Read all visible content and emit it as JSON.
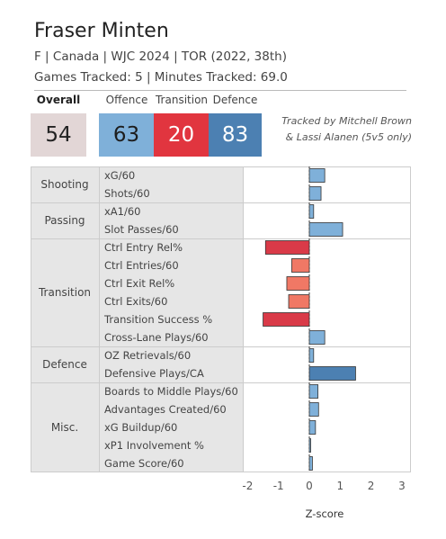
{
  "player": {
    "name": "Fraser Minten",
    "info": "F | Canada | WJC 2024 | TOR (2022, 38th)",
    "tracking": "Games Tracked: 5 | Minutes Tracked: 69.0"
  },
  "scores": {
    "overall_label": "Overall",
    "overall_value": "54",
    "offence_label": "Offence",
    "offence_value": "63",
    "transition_label": "Transition",
    "transition_value": "20",
    "defence_label": "Defence",
    "defence_value": "83"
  },
  "credit": {
    "line1": "Tracked by Mitchell Brown",
    "line2": "& Lassi Alanen (5v5 only)"
  },
  "colors": {
    "section_bg": "#e6e6e6",
    "bar_blue_light": "#7fb0d9",
    "bar_blue_dark": "#4c80b2",
    "bar_red_dark": "#d93a48",
    "bar_red_light": "#f07865",
    "border": "#cccccc"
  },
  "chart_data": {
    "type": "bar",
    "orientation": "horizontal",
    "xlabel": "Z-score",
    "xlim": [
      -2,
      3
    ],
    "xticks": [
      -2,
      -1,
      0,
      1,
      2,
      3
    ],
    "groups": [
      {
        "name": "Shooting",
        "metrics": [
          {
            "label": "xG/60",
            "value": 0.5
          },
          {
            "label": "Shots/60",
            "value": 0.38
          }
        ]
      },
      {
        "name": "Passing",
        "metrics": [
          {
            "label": "xA1/60",
            "value": 0.14
          },
          {
            "label": "Slot Passes/60",
            "value": 1.08
          }
        ]
      },
      {
        "name": "Transition",
        "metrics": [
          {
            "label": "Ctrl Entry Rel%",
            "value": -1.42
          },
          {
            "label": "Ctrl Entries/60",
            "value": -0.57
          },
          {
            "label": "Ctrl Exit Rel%",
            "value": -0.73
          },
          {
            "label": "Ctrl Exits/60",
            "value": -0.67
          },
          {
            "label": "Transition Success %",
            "value": -1.5
          },
          {
            "label": "Cross-Lane Plays/60",
            "value": 0.5
          }
        ]
      },
      {
        "name": "Defence",
        "metrics": [
          {
            "label": "OZ Retrievals/60",
            "value": 0.14
          },
          {
            "label": "Defensive Plays/CA",
            "value": 1.5
          }
        ]
      },
      {
        "name": "Misc.",
        "metrics": [
          {
            "label": "Boards to Middle Plays/60",
            "value": 0.28
          },
          {
            "label": "Advantages Created/60",
            "value": 0.3
          },
          {
            "label": "xG Buildup/60",
            "value": 0.2
          },
          {
            "label": "xP1 Involvement %",
            "value": 0.04
          },
          {
            "label": "Game Score/60",
            "value": 0.1
          }
        ]
      }
    ]
  }
}
